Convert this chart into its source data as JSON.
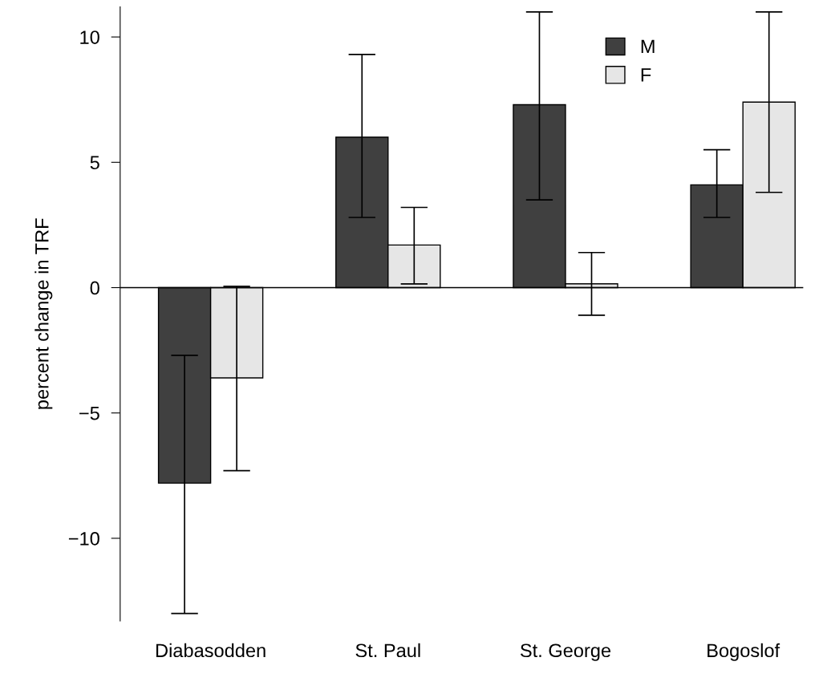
{
  "chart_data": {
    "type": "bar",
    "ylabel": "percent change in TRF",
    "categories": [
      "Diabasodden",
      "St. Paul",
      "St. George",
      "Bogoslof"
    ],
    "series": [
      {
        "name": "M",
        "color": "#404040",
        "values": [
          -7.8,
          6.0,
          7.3,
          4.1
        ],
        "errors": [
          [
            -13.0,
            -2.7
          ],
          [
            2.8,
            9.3
          ],
          [
            3.5,
            11.0
          ],
          [
            2.8,
            5.5
          ]
        ]
      },
      {
        "name": "F",
        "color": "#e6e6e6",
        "values": [
          -3.6,
          1.7,
          0.15,
          7.4
        ],
        "errors": [
          [
            -7.3,
            0.05
          ],
          [
            0.15,
            3.2
          ],
          [
            -1.1,
            1.4
          ],
          [
            3.8,
            11.0
          ]
        ]
      }
    ],
    "ylim": [
      -13.3,
      11.2
    ],
    "yticks": [
      {
        "value": -10,
        "label": "−10"
      },
      {
        "value": -5,
        "label": "−5"
      },
      0,
      5,
      10
    ],
    "ref_lines": [
      {
        "axis": "y",
        "value": 0,
        "color": "#000000"
      }
    ],
    "legend": "top right",
    "grid": false
  }
}
